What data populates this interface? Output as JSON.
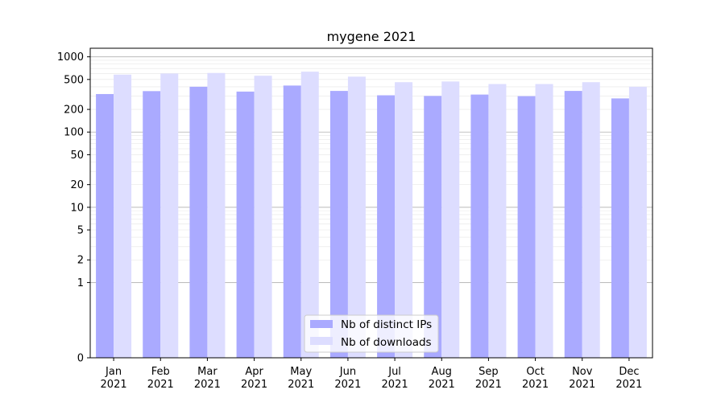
{
  "chart_data": {
    "type": "bar",
    "title": "mygene 2021",
    "xlabel": "",
    "ylabel": "",
    "y_scale": "symlog",
    "ylim": [
      0,
      1300
    ],
    "y_ticks": [
      0,
      1,
      2,
      5,
      10,
      20,
      50,
      100,
      200,
      500,
      1000
    ],
    "y_tick_labels": [
      "0",
      "1",
      "2",
      "5",
      "10",
      "20",
      "50",
      "100",
      "200",
      "500",
      "1000"
    ],
    "grid": true,
    "categories": [
      "Jan\n2021",
      "Feb\n2021",
      "Mar\n2021",
      "Apr\n2021",
      "May\n2021",
      "Jun\n2021",
      "Jul\n2021",
      "Aug\n2021",
      "Sep\n2021",
      "Oct\n2021",
      "Nov\n2021",
      "Dec\n2021"
    ],
    "series": [
      {
        "name": "Nb of distinct IPs",
        "color": "#aaaaff",
        "values": [
          320,
          350,
          400,
          345,
          415,
          352,
          308,
          302,
          315,
          300,
          352,
          280
        ]
      },
      {
        "name": "Nb of downloads",
        "color": "#ddddff",
        "values": [
          580,
          600,
          610,
          560,
          635,
          545,
          460,
          470,
          435,
          435,
          460,
          400
        ]
      }
    ],
    "legend_position": "bottom-center"
  }
}
